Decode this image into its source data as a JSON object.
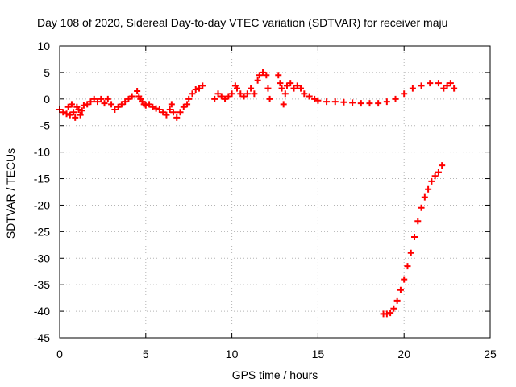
{
  "chart_data": {
    "type": "scatter",
    "title": "Day 108 of 2020, Sidereal Day-to-day VTEC variation (SDTVAR) for receiver maju",
    "xlabel": "GPS time / hours",
    "ylabel": "SDTVAR / TECUs",
    "xlim": [
      0,
      25
    ],
    "ylim": [
      -45,
      10
    ],
    "xticks": [
      0,
      5,
      10,
      15,
      20,
      25
    ],
    "yticks": [
      10,
      5,
      0,
      -5,
      -10,
      -15,
      -20,
      -25,
      -30,
      -35,
      -40,
      -45
    ],
    "grid": true,
    "marker": "+",
    "series_color": "#ff0000",
    "series": [
      {
        "name": "SDTVAR",
        "points": [
          [
            0.0,
            -2.0
          ],
          [
            0.2,
            -2.5
          ],
          [
            0.4,
            -2.8
          ],
          [
            0.5,
            -1.5
          ],
          [
            0.6,
            -3.0
          ],
          [
            0.7,
            -1.0
          ],
          [
            0.8,
            -2.5
          ],
          [
            0.9,
            -3.5
          ],
          [
            1.0,
            -1.5
          ],
          [
            1.1,
            -2.0
          ],
          [
            1.2,
            -3.0
          ],
          [
            1.3,
            -2.2
          ],
          [
            1.4,
            -1.2
          ],
          [
            1.6,
            -1.0
          ],
          [
            1.8,
            -0.5
          ],
          [
            2.0,
            0.0
          ],
          [
            2.2,
            -0.5
          ],
          [
            2.4,
            0.0
          ],
          [
            2.6,
            -0.8
          ],
          [
            2.8,
            0.0
          ],
          [
            3.0,
            -1.0
          ],
          [
            3.2,
            -2.0
          ],
          [
            3.4,
            -1.5
          ],
          [
            3.6,
            -1.0
          ],
          [
            3.8,
            -0.5
          ],
          [
            4.0,
            0.0
          ],
          [
            4.2,
            0.5
          ],
          [
            4.5,
            1.5
          ],
          [
            4.6,
            0.5
          ],
          [
            4.7,
            0.0
          ],
          [
            4.8,
            -0.5
          ],
          [
            4.9,
            -1.0
          ],
          [
            5.0,
            -1.2
          ],
          [
            5.2,
            -1.0
          ],
          [
            5.4,
            -1.5
          ],
          [
            5.6,
            -1.8
          ],
          [
            5.8,
            -2.0
          ],
          [
            6.0,
            -2.5
          ],
          [
            6.2,
            -3.0
          ],
          [
            6.4,
            -2.0
          ],
          [
            6.5,
            -1.0
          ],
          [
            6.6,
            -2.5
          ],
          [
            6.8,
            -3.5
          ],
          [
            7.0,
            -2.5
          ],
          [
            7.2,
            -1.5
          ],
          [
            7.4,
            -1.0
          ],
          [
            7.5,
            0.0
          ],
          [
            7.7,
            1.0
          ],
          [
            7.9,
            1.8
          ],
          [
            8.1,
            2.0
          ],
          [
            8.3,
            2.5
          ],
          [
            9.0,
            0.0
          ],
          [
            9.2,
            1.0
          ],
          [
            9.4,
            0.5
          ],
          [
            9.6,
            0.0
          ],
          [
            9.8,
            0.5
          ],
          [
            10.0,
            1.0
          ],
          [
            10.2,
            2.5
          ],
          [
            10.3,
            2.0
          ],
          [
            10.5,
            1.0
          ],
          [
            10.7,
            0.5
          ],
          [
            10.9,
            1.0
          ],
          [
            11.1,
            2.0
          ],
          [
            11.3,
            1.0
          ],
          [
            11.5,
            3.5
          ],
          [
            11.6,
            4.5
          ],
          [
            11.8,
            5.0
          ],
          [
            12.0,
            4.5
          ],
          [
            12.1,
            2.0
          ],
          [
            12.2,
            0.0
          ],
          [
            12.7,
            4.5
          ],
          [
            12.8,
            3.0
          ],
          [
            12.9,
            2.0
          ],
          [
            13.0,
            -1.0
          ],
          [
            13.1,
            1.0
          ],
          [
            13.2,
            2.5
          ],
          [
            13.4,
            3.0
          ],
          [
            13.6,
            2.0
          ],
          [
            13.8,
            2.5
          ],
          [
            14.0,
            2.0
          ],
          [
            14.2,
            1.0
          ],
          [
            14.5,
            0.5
          ],
          [
            14.8,
            0.0
          ],
          [
            15.0,
            -0.3
          ],
          [
            15.5,
            -0.5
          ],
          [
            16.0,
            -0.5
          ],
          [
            16.5,
            -0.6
          ],
          [
            17.0,
            -0.7
          ],
          [
            17.5,
            -0.8
          ],
          [
            18.0,
            -0.8
          ],
          [
            18.5,
            -0.8
          ],
          [
            19.0,
            -0.5
          ],
          [
            19.5,
            0.0
          ],
          [
            20.0,
            1.0
          ],
          [
            20.5,
            2.0
          ],
          [
            21.0,
            2.5
          ],
          [
            21.5,
            3.0
          ],
          [
            22.0,
            3.0
          ],
          [
            22.3,
            2.0
          ],
          [
            22.5,
            2.5
          ],
          [
            22.7,
            3.0
          ],
          [
            22.9,
            2.0
          ],
          [
            18.8,
            -40.5
          ],
          [
            19.0,
            -40.5
          ],
          [
            19.2,
            -40.3
          ],
          [
            19.4,
            -39.5
          ],
          [
            19.6,
            -38.0
          ],
          [
            19.8,
            -36.0
          ],
          [
            20.0,
            -34.0
          ],
          [
            20.2,
            -31.5
          ],
          [
            20.4,
            -29.0
          ],
          [
            20.6,
            -26.0
          ],
          [
            20.8,
            -23.0
          ],
          [
            21.0,
            -20.5
          ],
          [
            21.2,
            -18.5
          ],
          [
            21.4,
            -17.0
          ],
          [
            21.6,
            -15.5
          ],
          [
            21.8,
            -14.5
          ],
          [
            22.0,
            -13.8
          ],
          [
            22.2,
            -12.5
          ]
        ]
      }
    ]
  }
}
